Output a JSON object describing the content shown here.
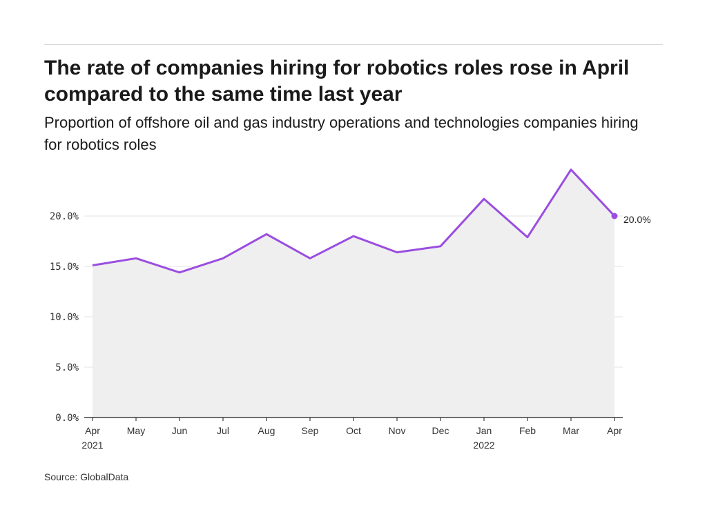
{
  "header": {
    "title": "The rate of companies hiring for robotics roles rose in April compared to the same time last year",
    "subtitle": "Proportion of offshore oil and gas industry operations and technologies companies hiring for robotics roles"
  },
  "footer": {
    "source": "Source: GlobalData"
  },
  "colors": {
    "line": "#9b4de0",
    "area": "#efefef",
    "grid": "#e3e3e3",
    "axis": "#1a1a1a"
  },
  "chart_data": {
    "type": "area",
    "title": "The rate of companies hiring for robotics roles rose in April compared to the same time last year",
    "subtitle": "Proportion of offshore oil and gas industry operations and technologies companies hiring for robotics roles",
    "xlabel": "",
    "ylabel": "",
    "categories": [
      "Apr",
      "May",
      "Jun",
      "Jul",
      "Aug",
      "Sep",
      "Oct",
      "Nov",
      "Dec",
      "Jan",
      "Feb",
      "Mar",
      "Apr"
    ],
    "year_labels": [
      "2021",
      "",
      "",
      "",
      "",
      "",
      "",
      "",
      "",
      "2022",
      "",
      "",
      ""
    ],
    "values": [
      15.1,
      15.8,
      14.4,
      15.8,
      18.2,
      15.8,
      18.0,
      16.4,
      17.0,
      21.7,
      17.9,
      24.6,
      20.0
    ],
    "y_ticks": [
      "0.0%",
      "5.0%",
      "10.0%",
      "15.0%",
      "20.0%"
    ],
    "y_tick_values": [
      0,
      5,
      10,
      15,
      20
    ],
    "ylim": [
      0,
      25
    ],
    "grid": true,
    "end_label": "20.0%"
  }
}
